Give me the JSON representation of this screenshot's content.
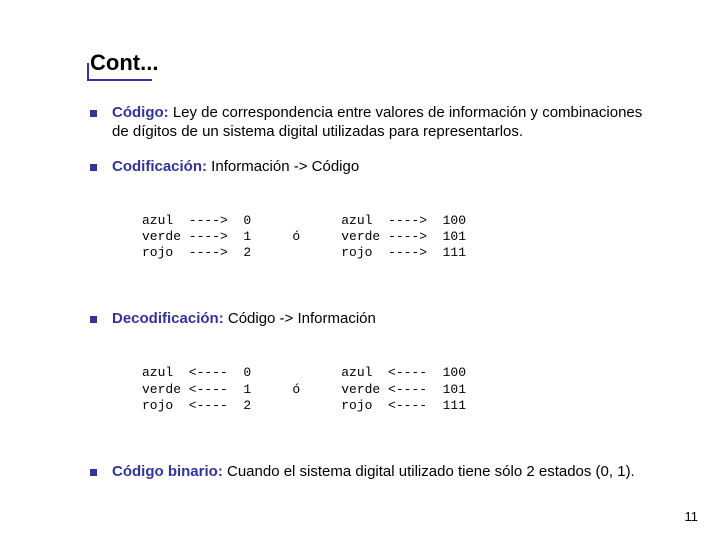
{
  "title": "Cont...",
  "title_fontsize": 22,
  "body_fontsize": 15,
  "mono_fontsize": 13,
  "pagenum_fontsize": 13,
  "accent_color": "#333399",
  "text_color": "#000000",
  "background_color": "#ffffff",
  "underline_width": 65,
  "bullets": [
    {
      "term": "Código:",
      "text": " Ley de correspondencia entre valores de información y combinaciones de dígitos de un sistema digital utilizadas para representarlos."
    },
    {
      "term": "Codificación:",
      "text": " Información -> Código",
      "mapping": {
        "left": [
          "azul  ---->  0",
          "verde ---->  1",
          "rojo  ---->  2"
        ],
        "sep": "ó",
        "right": [
          "azul  ---->  100",
          "verde ---->  101",
          "rojo  ---->  111"
        ]
      }
    },
    {
      "term": "Decodificación:",
      "text": " Código -> Información",
      "mapping": {
        "left": [
          "azul  <----  0",
          "verde <----  1",
          "rojo  <----  2"
        ],
        "sep": "ó",
        "right": [
          "azul  <----  100",
          "verde <----  101",
          "rojo  <----  111"
        ]
      }
    },
    {
      "term": "Código binario:",
      "text": " Cuando el sistema digital utilizado tiene sólo 2 estados (0, 1)."
    }
  ],
  "page_number": "11"
}
